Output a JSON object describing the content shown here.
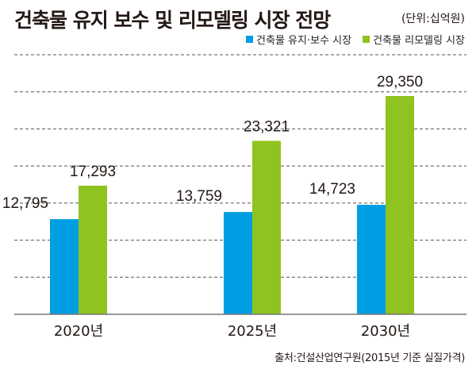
{
  "title": "건축물 유지 보수 및 리모델링 시장 전망",
  "unit": "(단위:십억원)",
  "source": "출처:건설산업연구원(2015년 기준 실질가격)",
  "colors": {
    "maintenance": "#009fe3",
    "remodeling": "#8fc31f",
    "grid": "#555555",
    "axis": "#777777"
  },
  "chart_data": {
    "type": "bar",
    "title": "건축물 유지 보수 및 리모델링 시장 전망",
    "xlabel": "",
    "ylabel": "",
    "unit": "(단위:십억원)",
    "categories": [
      "2020년",
      "2025년",
      "2030년"
    ],
    "series": [
      {
        "name": "건축물 유지·보수 시장",
        "values": [
          12795,
          13759,
          14723
        ],
        "labels": [
          "12,795",
          "13,759",
          "14,723"
        ]
      },
      {
        "name": "건축물 리모델링 시장",
        "values": [
          17293,
          23321,
          29350
        ],
        "labels": [
          "17,293",
          "23,321",
          "29,350"
        ]
      }
    ],
    "ylim": [
      0,
      34900
    ],
    "grid": true,
    "grid_lines": 7,
    "legend": "top-right"
  }
}
